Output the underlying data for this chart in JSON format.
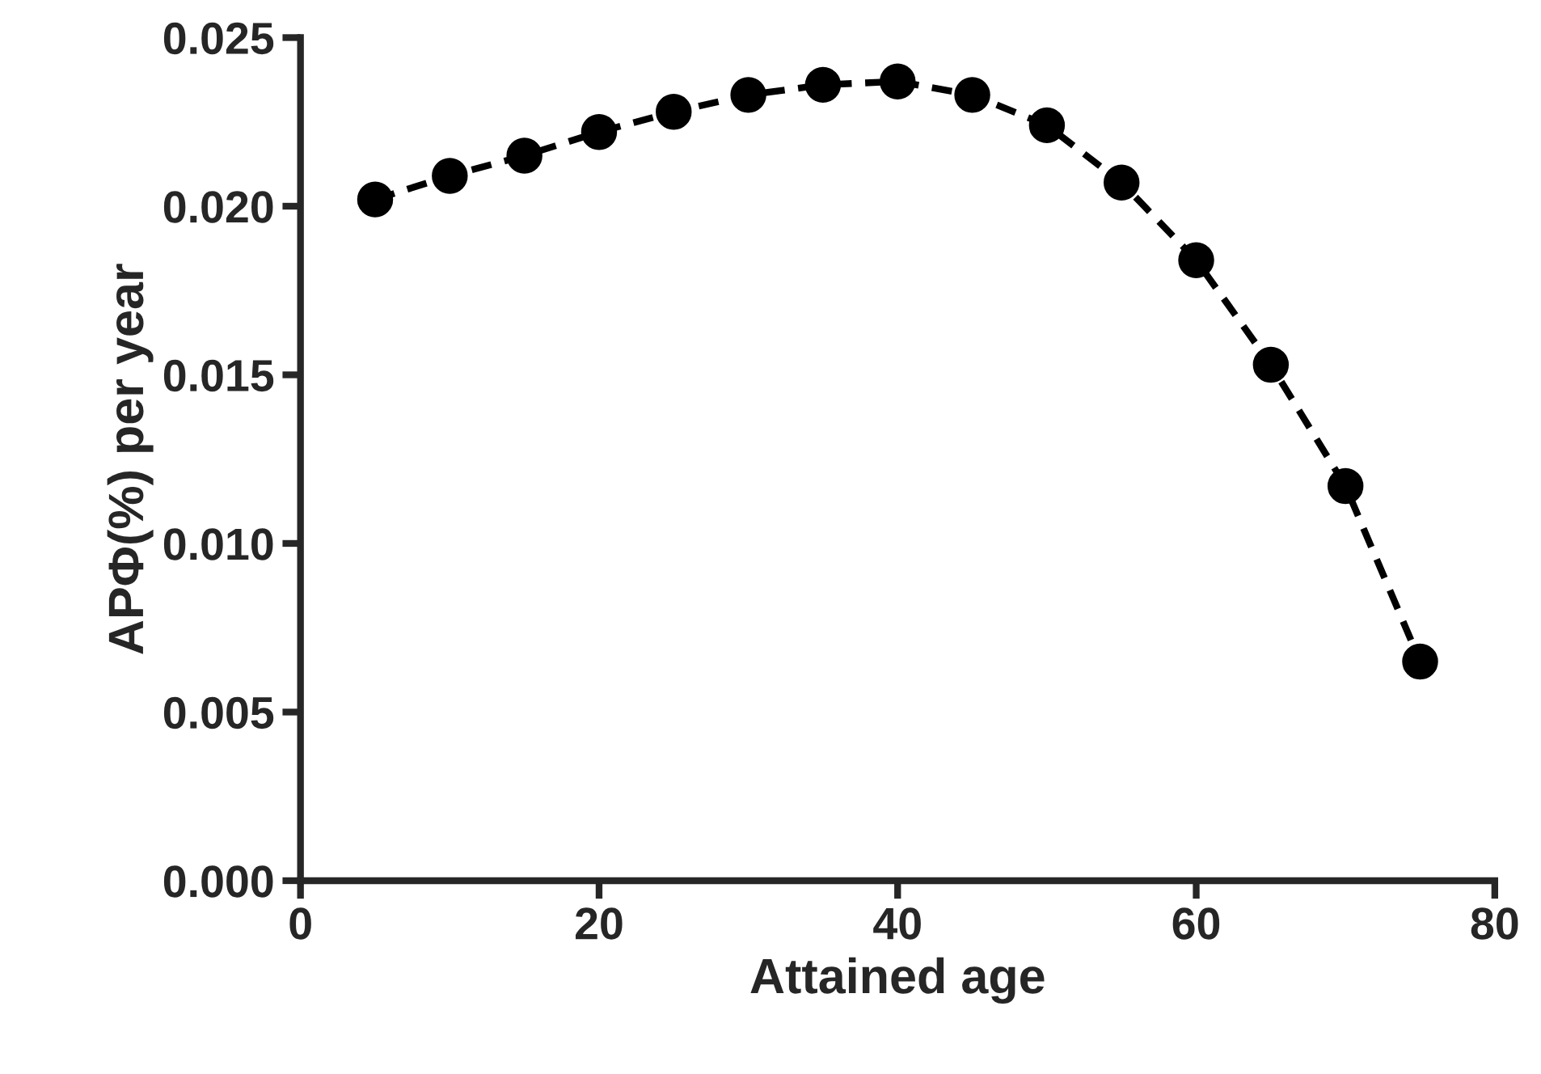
{
  "chart_data": {
    "type": "line",
    "xlabel": "Attained age",
    "ylabel": "APΦ(%) per year",
    "x": [
      5,
      10,
      15,
      20,
      25,
      30,
      35,
      40,
      45,
      50,
      55,
      60,
      65,
      70,
      75
    ],
    "series": [
      {
        "color": "#000000",
        "values": [
          0.0202,
          0.0209,
          0.0215,
          0.0222,
          0.0228,
          0.0233,
          0.0236,
          0.0237,
          0.0233,
          0.0224,
          0.0207,
          0.0184,
          0.0153,
          0.0117,
          0.0065
        ]
      }
    ],
    "marker": "circle",
    "line_style": "dashed",
    "grid": false,
    "legend": false,
    "xlim": [
      0,
      80
    ],
    "xticks": [
      0,
      20,
      40,
      60,
      80
    ],
    "ylim": [
      0,
      0.025
    ],
    "yticks": [
      {
        "value": 0,
        "label": "0.000"
      },
      {
        "value": 0.005,
        "label": "0.005"
      },
      {
        "value": 0.01,
        "label": "0.010"
      },
      {
        "value": 0.015,
        "label": "0.015"
      },
      {
        "value": 0.02,
        "label": "0.020"
      },
      {
        "value": 0.025,
        "label": "0.025"
      }
    ]
  }
}
